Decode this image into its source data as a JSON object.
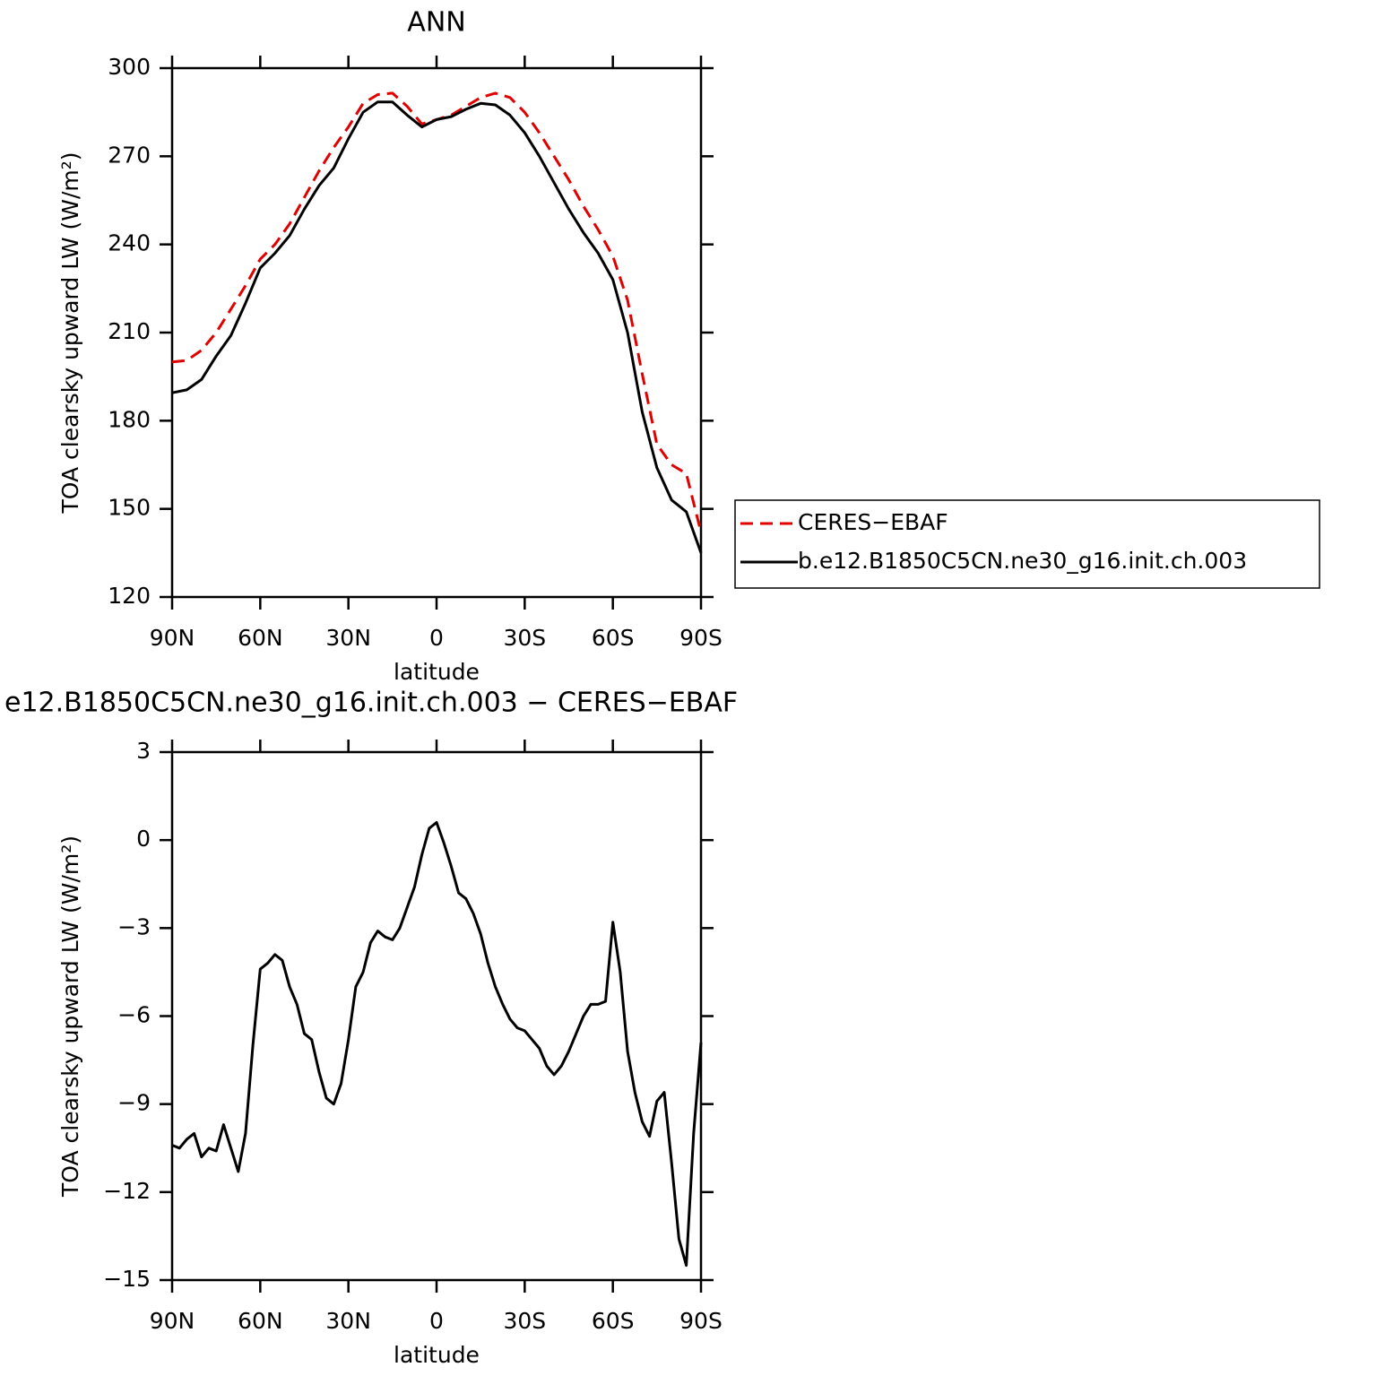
{
  "chart_data": [
    {
      "type": "line",
      "title": "ANN",
      "xlabel": "latitude",
      "ylabel": "TOA clearsky upward LW (W/m²)",
      "x": [
        90,
        85,
        80,
        75,
        70,
        65,
        60,
        55,
        50,
        45,
        40,
        35,
        30,
        25,
        20,
        15,
        10,
        5,
        0,
        -5,
        -10,
        -15,
        -20,
        -25,
        -30,
        -35,
        -40,
        -45,
        -50,
        -55,
        -60,
        -65,
        -70,
        -75,
        -80,
        -85,
        -90
      ],
      "series": [
        {
          "name": "CERES−EBAF",
          "color": "#e00000",
          "dash": true,
          "values": [
            200,
            200.5,
            204,
            210,
            218,
            226,
            235,
            240,
            247,
            256,
            265,
            273,
            280,
            288,
            291,
            291.5,
            287,
            281,
            282.5,
            284,
            287,
            290,
            291.5,
            290,
            285,
            278,
            270,
            262,
            253,
            245,
            236,
            221,
            196,
            172,
            165,
            162,
            142
          ]
        },
        {
          "name": "b.e12.B1850C5CN.ne30_g16.init.ch.003",
          "color": "#000000",
          "dash": false,
          "values": [
            189.5,
            190.5,
            194,
            202,
            209,
            220,
            232,
            237,
            243,
            252,
            260,
            266,
            276,
            285,
            288.5,
            288.5,
            284,
            280,
            282.5,
            283.5,
            286,
            288,
            287.5,
            284,
            278,
            270,
            261,
            252,
            244,
            237,
            228,
            210,
            183,
            164,
            153,
            149,
            135
          ]
        }
      ],
      "xlim": [
        90,
        -90
      ],
      "xticks": [
        {
          "value": 90,
          "label": "90N"
        },
        {
          "value": 60,
          "label": "60N"
        },
        {
          "value": 30,
          "label": "30N"
        },
        0,
        {
          "value": -30,
          "label": "30S"
        },
        {
          "value": -60,
          "label": "60S"
        },
        {
          "value": -90,
          "label": "90S"
        }
      ],
      "ylim": [
        120,
        300
      ],
      "yticks": [
        120,
        150,
        180,
        210,
        240,
        270,
        300
      ],
      "legend": "outside right"
    },
    {
      "type": "line",
      "title": "e12.B1850C5CN.ne30_g16.init.ch.003 − CERES−EBAF",
      "xlabel": "latitude",
      "ylabel": "TOA clearsky upward LW (W/m²)",
      "x": [
        90,
        87.5,
        85,
        82.5,
        80,
        77.5,
        75,
        72.5,
        70,
        67.5,
        65,
        62.5,
        60,
        57.5,
        55,
        52.5,
        50,
        47.5,
        45,
        42.5,
        40,
        37.5,
        35,
        32.5,
        30,
        27.5,
        25,
        22.5,
        20,
        17.5,
        15,
        12.5,
        10,
        7.5,
        5,
        2.5,
        0,
        -2.5,
        -5,
        -7.5,
        -10,
        -12.5,
        -15,
        -17.5,
        -20,
        -22.5,
        -25,
        -27.5,
        -30,
        -32.5,
        -35,
        -37.5,
        -40,
        -42.5,
        -45,
        -47.5,
        -50,
        -52.5,
        -55,
        -57.5,
        -60,
        -62.5,
        -65,
        -67.5,
        -70,
        -72.5,
        -75,
        -77.5,
        -80,
        -82.5,
        -85,
        -87.5,
        -90
      ],
      "series": [
        {
          "color": "#000000",
          "dash": false,
          "values": [
            -10.4,
            -10.5,
            -10.2,
            -10.0,
            -10.8,
            -10.5,
            -10.6,
            -9.7,
            -10.5,
            -11.3,
            -10.0,
            -7.0,
            -4.4,
            -4.2,
            -3.9,
            -4.1,
            -5.0,
            -5.6,
            -6.6,
            -6.8,
            -7.9,
            -8.8,
            -9.0,
            -8.3,
            -6.8,
            -5.0,
            -4.5,
            -3.5,
            -3.1,
            -3.3,
            -3.4,
            -3.0,
            -2.3,
            -1.6,
            -0.5,
            0.4,
            0.6,
            -0.1,
            -0.9,
            -1.8,
            -2.0,
            -2.5,
            -3.2,
            -4.2,
            -5.0,
            -5.6,
            -6.1,
            -6.4,
            -6.5,
            -6.8,
            -7.1,
            -7.7,
            -8.0,
            -7.7,
            -7.2,
            -6.6,
            -6.0,
            -5.6,
            -5.6,
            -5.5,
            -2.8,
            -4.5,
            -7.2,
            -8.6,
            -9.6,
            -10.1,
            -8.9,
            -8.6,
            -11.0,
            -13.6,
            -14.5,
            -10.0,
            -6.9
          ]
        }
      ],
      "xlim": [
        90,
        -90
      ],
      "xticks": [
        {
          "value": 90,
          "label": "90N"
        },
        {
          "value": 60,
          "label": "60N"
        },
        {
          "value": 30,
          "label": "30N"
        },
        0,
        {
          "value": -30,
          "label": "30S"
        },
        {
          "value": -60,
          "label": "60S"
        },
        {
          "value": -90,
          "label": "90S"
        }
      ],
      "ylim": [
        -15,
        3
      ],
      "yticks": [
        {
          "value": -15,
          "label": "−15"
        },
        {
          "value": -12,
          "label": "−12"
        },
        {
          "value": -9,
          "label": "−9"
        },
        {
          "value": -6,
          "label": "−6"
        },
        {
          "value": -3,
          "label": "−3"
        },
        0,
        3
      ]
    }
  ]
}
